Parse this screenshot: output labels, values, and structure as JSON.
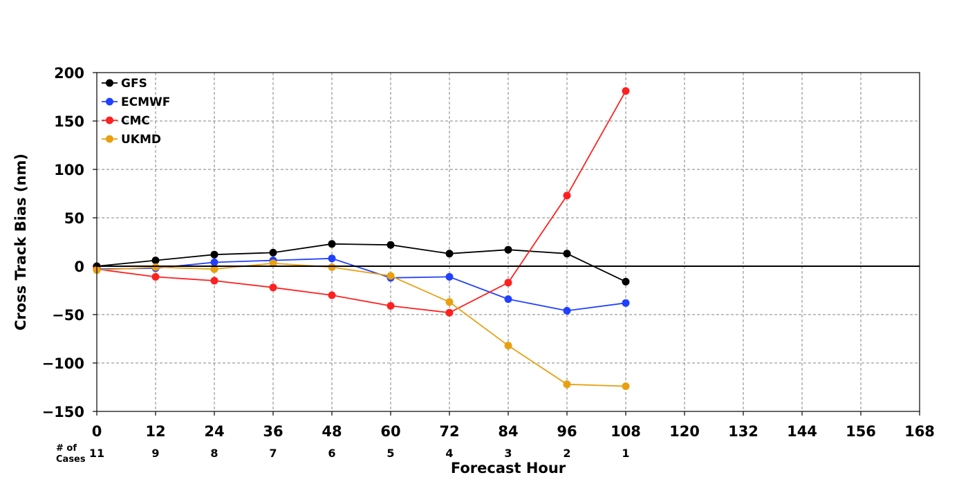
{
  "chart_data": {
    "type": "line",
    "title": "",
    "xlabel": "Forecast Hour",
    "ylabel": "Cross Track Bias (nm)",
    "xlim": [
      0,
      168
    ],
    "ylim": [
      -150,
      200
    ],
    "x_ticks": [
      0,
      12,
      24,
      36,
      48,
      60,
      72,
      84,
      96,
      108,
      120,
      132,
      144,
      156,
      168
    ],
    "x_tick_labels": [
      "0",
      "12",
      "24",
      "36",
      "48",
      "60",
      "72",
      "84",
      "96",
      "108",
      "120",
      "132",
      "144",
      "156",
      "168"
    ],
    "y_ticks": [
      200,
      150,
      100,
      50,
      0,
      -50,
      -100,
      -150
    ],
    "y_tick_labels": [
      "200",
      "150",
      "100",
      "50",
      "0",
      "−50",
      "−100",
      "−150"
    ],
    "grid": true,
    "zero_line": true,
    "legend_position": "top-left",
    "x": [
      0,
      12,
      24,
      36,
      48,
      60,
      72,
      84,
      96,
      108
    ],
    "series": [
      {
        "name": "GFS",
        "color": "#000000",
        "values": [
          0,
          6,
          12,
          14,
          23,
          22,
          13,
          17,
          13,
          -16
        ]
      },
      {
        "name": "ECMWF",
        "color": "#2040ff",
        "values": [
          -3,
          -2,
          4,
          6,
          8,
          -12,
          -11,
          -34,
          -46,
          -38
        ]
      },
      {
        "name": "CMC",
        "color": "#ff2020",
        "values": [
          -3,
          -11,
          -15,
          -22,
          -30,
          -41,
          -48,
          -17,
          73,
          181
        ]
      },
      {
        "name": "UKMD",
        "color": "#e8a010",
        "values": [
          -4,
          -1,
          -3,
          3,
          -1,
          -10,
          -37,
          -82,
          -122,
          -124
        ]
      }
    ],
    "cases": {
      "label_line1": "# of",
      "label_line2": "Cases",
      "values": [
        "11",
        "9",
        "8",
        "7",
        "6",
        "5",
        "4",
        "3",
        "2",
        "1"
      ]
    }
  }
}
